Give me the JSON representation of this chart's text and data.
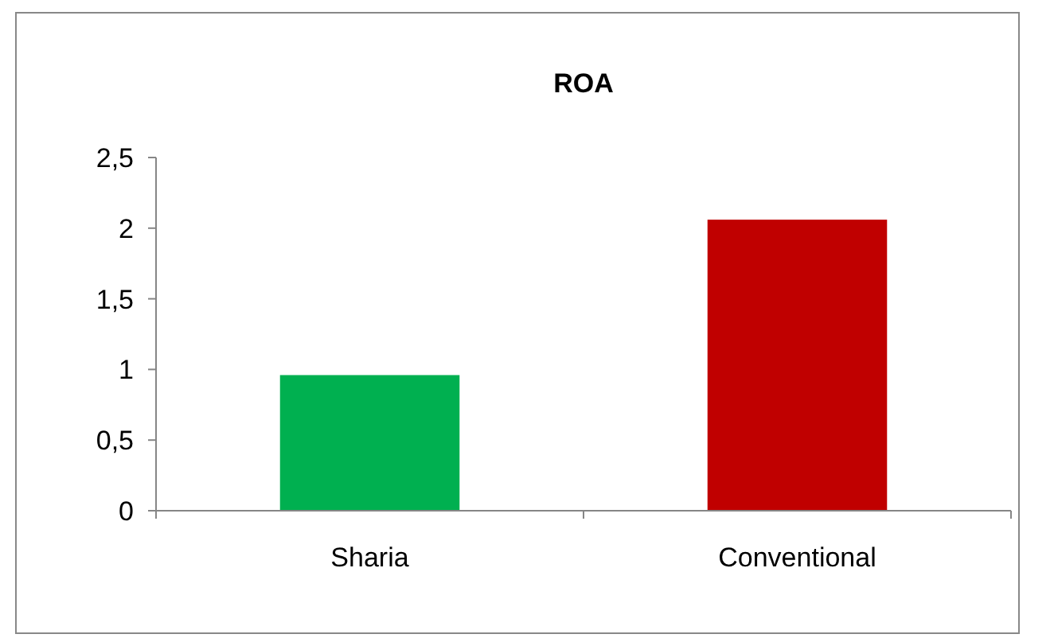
{
  "chart_data": {
    "type": "bar",
    "title": "ROA",
    "categories": [
      "Sharia",
      "Conventional"
    ],
    "values": [
      0.96,
      2.06
    ],
    "colors": [
      "#00b050",
      "#c00000"
    ],
    "ylim": [
      0,
      2.5
    ],
    "yticks": [
      0,
      {
        "value": 0.5,
        "label": "0,5"
      },
      1,
      {
        "value": 1.5,
        "label": "1,5"
      },
      2,
      {
        "value": 2.5,
        "label": "2,5"
      }
    ],
    "grid": false
  }
}
